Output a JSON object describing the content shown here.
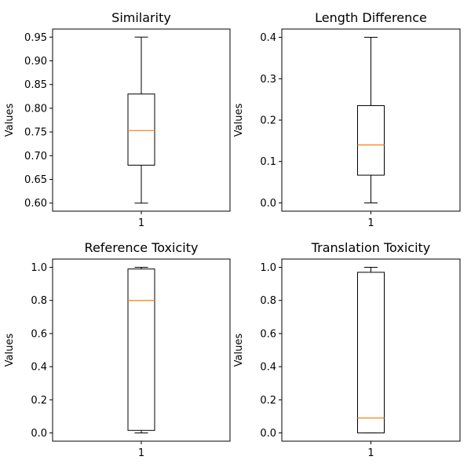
{
  "chart_data": [
    {
      "type": "box",
      "title": "Similarity",
      "xlabel": "",
      "ylabel": "Values",
      "categories": [
        "1"
      ],
      "ylim": [
        0.583,
        0.967
      ],
      "yticks": [
        "0.60",
        "0.65",
        "0.70",
        "0.75",
        "0.80",
        "0.85",
        "0.90",
        "0.95"
      ],
      "box": {
        "whisker_low": 0.6,
        "q1": 0.68,
        "median": 0.753,
        "q3": 0.83,
        "whisker_high": 0.95
      },
      "grid": false
    },
    {
      "type": "box",
      "title": "Length Difference",
      "xlabel": "",
      "ylabel": "Values",
      "categories": [
        "1"
      ],
      "ylim": [
        -0.02,
        0.42
      ],
      "yticks": [
        "0.0",
        "0.1",
        "0.2",
        "0.3",
        "0.4"
      ],
      "box": {
        "whisker_low": 0.0,
        "q1": 0.067,
        "median": 0.14,
        "q3": 0.235,
        "whisker_high": 0.4
      },
      "grid": false
    },
    {
      "type": "box",
      "title": "Reference Toxicity",
      "xlabel": "",
      "ylabel": "Values",
      "categories": [
        "1"
      ],
      "ylim": [
        -0.05,
        1.05
      ],
      "yticks": [
        "0.0",
        "0.2",
        "0.4",
        "0.6",
        "0.8",
        "1.0"
      ],
      "box": {
        "whisker_low": 0.0,
        "q1": 0.015,
        "median": 0.8,
        "q3": 0.99,
        "whisker_high": 1.0
      },
      "grid": false
    },
    {
      "type": "box",
      "title": "Translation Toxicity",
      "xlabel": "",
      "ylabel": "Values",
      "categories": [
        "1"
      ],
      "ylim": [
        -0.05,
        1.05
      ],
      "yticks": [
        "0.0",
        "0.2",
        "0.4",
        "0.6",
        "0.8",
        "1.0"
      ],
      "box": {
        "whisker_low": 0.0,
        "q1": 0.0,
        "median": 0.09,
        "q3": 0.97,
        "whisker_high": 1.0
      },
      "grid": false
    }
  ],
  "colors": {
    "median": "#ff7f0e",
    "box": "#000000",
    "axes": "#000000"
  }
}
